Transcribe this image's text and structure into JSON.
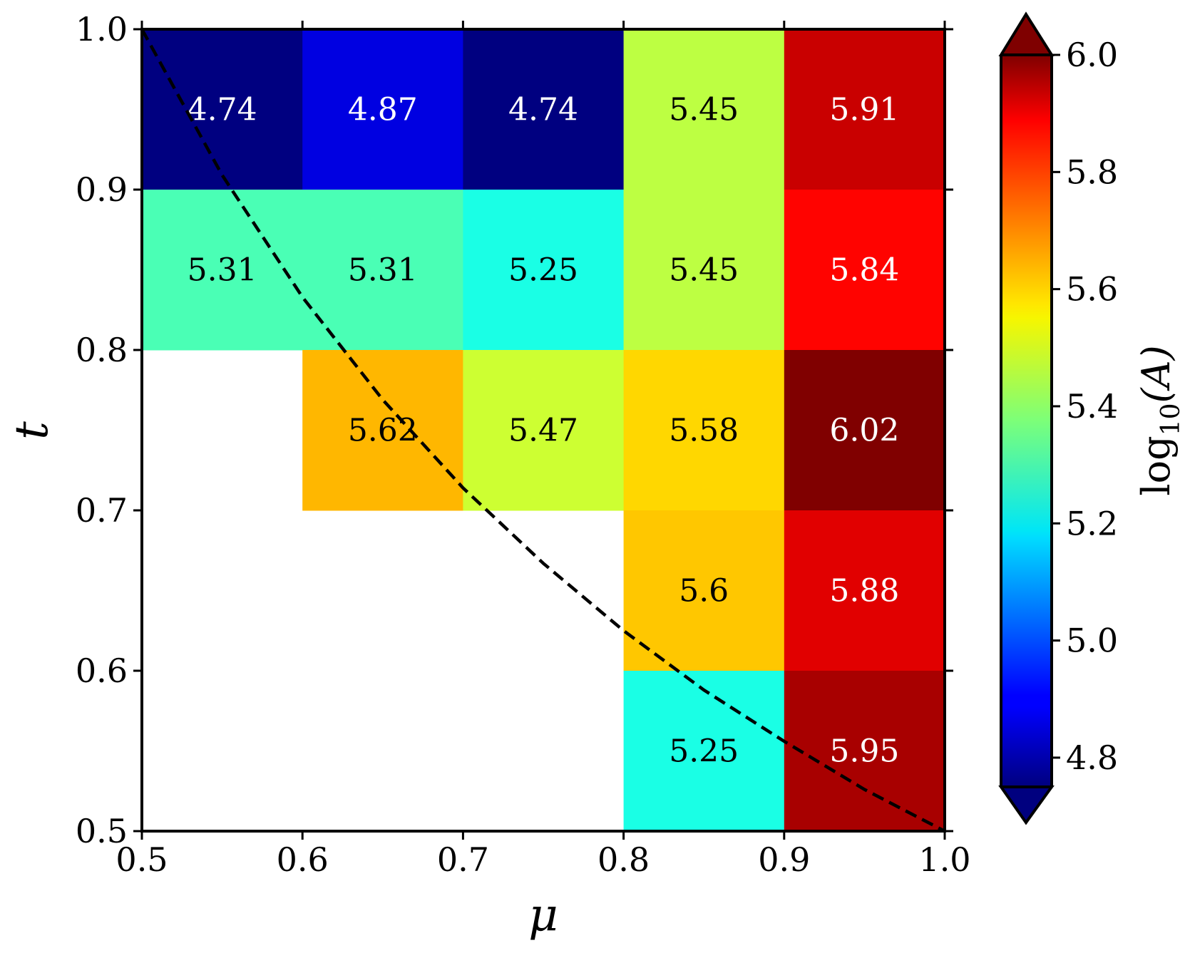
{
  "chart_data": {
    "type": "heatmap",
    "xlabel": "μ",
    "ylabel": "t",
    "xlim": [
      0.5,
      1.0
    ],
    "ylim": [
      0.5,
      1.0
    ],
    "x_ticks": [
      "0.5",
      "0.6",
      "0.7",
      "0.8",
      "0.9",
      "1.0"
    ],
    "y_ticks": [
      "0.5",
      "0.6",
      "0.7",
      "0.8",
      "0.9",
      "1.0"
    ],
    "x_bins": [
      0.5,
      0.6,
      0.7,
      0.8,
      0.9,
      1.0
    ],
    "y_bins": [
      0.5,
      0.6,
      0.7,
      0.8,
      0.9,
      1.0
    ],
    "cells": [
      {
        "mu": 0.55,
        "t": 0.95,
        "value": 4.74,
        "label": "4.74"
      },
      {
        "mu": 0.65,
        "t": 0.95,
        "value": 4.87,
        "label": "4.87"
      },
      {
        "mu": 0.75,
        "t": 0.95,
        "value": 4.74,
        "label": "4.74"
      },
      {
        "mu": 0.85,
        "t": 0.95,
        "value": 5.45,
        "label": "5.45"
      },
      {
        "mu": 0.95,
        "t": 0.95,
        "value": 5.91,
        "label": "5.91"
      },
      {
        "mu": 0.55,
        "t": 0.85,
        "value": 5.31,
        "label": "5.31"
      },
      {
        "mu": 0.65,
        "t": 0.85,
        "value": 5.31,
        "label": "5.31"
      },
      {
        "mu": 0.75,
        "t": 0.85,
        "value": 5.25,
        "label": "5.25"
      },
      {
        "mu": 0.85,
        "t": 0.85,
        "value": 5.45,
        "label": "5.45"
      },
      {
        "mu": 0.95,
        "t": 0.85,
        "value": 5.84,
        "label": "5.84"
      },
      {
        "mu": 0.65,
        "t": 0.75,
        "value": 5.62,
        "label": "5.62"
      },
      {
        "mu": 0.75,
        "t": 0.75,
        "value": 5.47,
        "label": "5.47"
      },
      {
        "mu": 0.85,
        "t": 0.75,
        "value": 5.58,
        "label": "5.58"
      },
      {
        "mu": 0.95,
        "t": 0.75,
        "value": 6.02,
        "label": "6.02"
      },
      {
        "mu": 0.85,
        "t": 0.65,
        "value": 5.6,
        "label": "5.6"
      },
      {
        "mu": 0.95,
        "t": 0.65,
        "value": 5.88,
        "label": "5.88"
      },
      {
        "mu": 0.85,
        "t": 0.55,
        "value": 5.25,
        "label": "5.25"
      },
      {
        "mu": 0.95,
        "t": 0.55,
        "value": 5.95,
        "label": "5.95"
      }
    ],
    "curve": {
      "style": "dashed",
      "color": "#000000",
      "points": [
        [
          0.5,
          1.0
        ],
        [
          0.55,
          0.909
        ],
        [
          0.6,
          0.833
        ],
        [
          0.65,
          0.769
        ],
        [
          0.7,
          0.714
        ],
        [
          0.75,
          0.667
        ],
        [
          0.8,
          0.625
        ],
        [
          0.85,
          0.588
        ],
        [
          0.9,
          0.556
        ],
        [
          0.95,
          0.526
        ],
        [
          1.0,
          0.5
        ]
      ]
    },
    "colorbar": {
      "label": "log10(A)",
      "label_main": "log",
      "label_sub": "10",
      "label_arg": "(A)",
      "colormap": "jet",
      "vmin": 4.75,
      "vmax": 6.0,
      "extend": "both",
      "ticks": [
        "4.8",
        "5.0",
        "5.2",
        "5.4",
        "5.6",
        "5.8",
        "6.0"
      ],
      "tick_values": [
        4.8,
        5.0,
        5.2,
        5.4,
        5.6,
        5.8,
        6.0
      ]
    },
    "grid": false
  }
}
